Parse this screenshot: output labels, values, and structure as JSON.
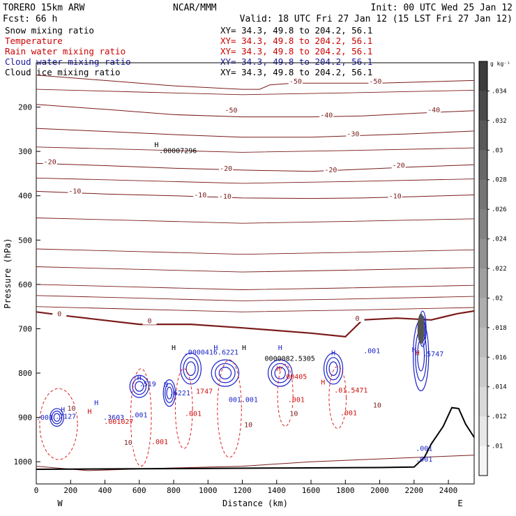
{
  "header": {
    "model": "TORERO  15km ARW",
    "forecast": "Fcst:   66 h",
    "center": "NCAR/MMM",
    "init": "Init: 00 UTC Wed 25 Jan 12",
    "valid": "Valid: 18 UTC Fri 27 Jan 12 (15 LST Fri 27 Jan 12)"
  },
  "fields": [
    {
      "name": "Snow mixing ratio",
      "xy": "XY=  34.3, 49.8 to 204.2, 56.1",
      "color": "#000000"
    },
    {
      "name": "Temperature",
      "xy": "XY=  34.3, 49.8 to 204.2, 56.1",
      "color": "#cc0000"
    },
    {
      "name": "Rain water mixing ratio",
      "xy": "XY=  34.3, 49.8 to 204.2, 56.1",
      "color": "#cc0000"
    },
    {
      "name": "Cloud water mixing ratio",
      "xy": "XY=  34.3, 49.8 to 204.2, 56.1",
      "color": "#1a1aa0"
    },
    {
      "name": "Cloud ice mixing ratio",
      "xy": "XY=  34.3, 49.8 to 204.2, 56.1",
      "color": "#000000"
    }
  ],
  "chart_data": {
    "type": "cross-section contour",
    "xlabel": "Distance (km)",
    "ylabel": "Pressure (hPa)",
    "xlim": [
      0,
      2550
    ],
    "ylim": [
      1050,
      100
    ],
    "xticks": [
      0,
      200,
      400,
      600,
      800,
      1000,
      1200,
      1400,
      1600,
      1800,
      2000,
      2200,
      2400
    ],
    "yticks": [
      200,
      300,
      400,
      500,
      600,
      700,
      800,
      900,
      1000
    ],
    "x_ends": {
      "left": "W",
      "right": "E"
    },
    "colorbar": {
      "unit": "g kg⁻¹",
      "ticks": [
        ".034",
        ".032",
        ".03",
        ".028",
        ".026",
        ".024",
        ".022",
        ".02",
        ".018",
        ".016",
        ".014",
        ".012",
        ".01"
      ]
    },
    "temperature_contours": [
      {
        "level": -50,
        "points": [
          [
            0,
            128
          ],
          [
            400,
            140
          ],
          [
            800,
            152
          ],
          [
            1200,
            160
          ],
          [
            1300,
            160
          ],
          [
            1360,
            150
          ],
          [
            1500,
            146
          ],
          [
            1700,
            146
          ],
          [
            2000,
            146
          ],
          [
            2550,
            140
          ]
        ]
      },
      {
        "level": -40,
        "points": [
          [
            0,
            194
          ],
          [
            400,
            205
          ],
          [
            800,
            217
          ],
          [
            1200,
            222
          ],
          [
            1600,
            222
          ],
          [
            1900,
            220
          ],
          [
            2200,
            214
          ],
          [
            2550,
            208
          ]
        ]
      },
      {
        "level": -30,
        "points": [
          [
            0,
            248
          ],
          [
            400,
            255
          ],
          [
            800,
            262
          ],
          [
            1200,
            268
          ],
          [
            1600,
            268
          ],
          [
            1900,
            264
          ],
          [
            2200,
            260
          ],
          [
            2550,
            254
          ]
        ]
      },
      {
        "level": -20,
        "points": [
          [
            0,
            327
          ],
          [
            400,
            332
          ],
          [
            800,
            338
          ],
          [
            1200,
            342
          ],
          [
            1600,
            345
          ],
          [
            1900,
            340
          ],
          [
            2200,
            335
          ],
          [
            2550,
            330
          ]
        ]
      },
      {
        "level": -10,
        "points": [
          [
            0,
            390
          ],
          [
            400,
            396
          ],
          [
            800,
            400
          ],
          [
            1200,
            405
          ],
          [
            1600,
            406
          ],
          [
            1900,
            405
          ],
          [
            2200,
            402
          ],
          [
            2550,
            398
          ]
        ]
      },
      {
        "level": 0,
        "points": [
          [
            0,
            662
          ],
          [
            200,
            672
          ],
          [
            600,
            690
          ],
          [
            900,
            690
          ],
          [
            1200,
            698
          ],
          [
            1600,
            710
          ],
          [
            1800,
            718
          ],
          [
            1900,
            680
          ],
          [
            2100,
            676
          ],
          [
            2300,
            680
          ],
          [
            2450,
            666
          ],
          [
            2550,
            660
          ]
        ]
      },
      {
        "level": 10,
        "points": [
          [
            0,
            1010
          ],
          [
            300,
            1020
          ],
          [
            700,
            1015
          ],
          [
            1200,
            1010
          ],
          [
            1600,
            1000
          ],
          [
            2100,
            992
          ],
          [
            2550,
            985
          ]
        ]
      }
    ],
    "temperature_labels": [
      {
        "text": "-50",
        "x": 1510,
        "p": 146
      },
      {
        "text": "-50",
        "x": 1975,
        "p": 146
      },
      {
        "text": "-50",
        "x": 1135,
        "p": 211
      },
      {
        "text": "-40",
        "x": 1690,
        "p": 222
      },
      {
        "text": "-40",
        "x": 2315,
        "p": 210
      },
      {
        "text": "-30",
        "x": 1845,
        "p": 264
      },
      {
        "text": "-20",
        "x": 80,
        "p": 327
      },
      {
        "text": "-20",
        "x": 1105,
        "p": 342
      },
      {
        "text": "-20",
        "x": 1715,
        "p": 345
      },
      {
        "text": "-20",
        "x": 2110,
        "p": 335
      },
      {
        "text": "-10",
        "x": 225,
        "p": 393
      },
      {
        "text": "-10",
        "x": 955,
        "p": 402
      },
      {
        "text": "-10",
        "x": 1100,
        "p": 405
      },
      {
        "text": "-10",
        "x": 2090,
        "p": 404
      },
      {
        "text": "0",
        "x": 135,
        "p": 670
      },
      {
        "text": "0",
        "x": 660,
        "p": 686
      },
      {
        "text": "0",
        "x": 1870,
        "p": 680
      },
      {
        "text": "10",
        "x": 205,
        "p": 883
      },
      {
        "text": "10",
        "x": 535,
        "p": 960
      },
      {
        "text": "10",
        "x": 1235,
        "p": 920
      },
      {
        "text": "10",
        "x": 1500,
        "p": 895
      },
      {
        "text": "10",
        "x": 1985,
        "p": 876
      }
    ],
    "surface_pressure": [
      [
        0,
        1017
      ],
      [
        500,
        1016
      ],
      [
        1000,
        1015
      ],
      [
        1500,
        1014
      ],
      [
        2000,
        1013
      ],
      [
        2200,
        1012
      ],
      [
        2260,
        990
      ],
      [
        2300,
        960
      ],
      [
        2370,
        920
      ],
      [
        2420,
        878
      ],
      [
        2460,
        880
      ],
      [
        2500,
        915
      ],
      [
        2550,
        945
      ]
    ],
    "cloud_water_labels": [
      {
        "text": ".519",
        "x": 600,
        "p": 830
      },
      {
        "text": ".6221",
        "x": 775,
        "p": 850
      },
      {
        "text": ".0000416.6221",
        "x": 860,
        "p": 758
      },
      {
        "text": ".5747",
        "x": 2250,
        "p": 762
      },
      {
        "text": ".7127",
        "x": 110,
        "p": 903
      },
      {
        "text": ".3603",
        "x": 390,
        "p": 905
      },
      {
        "text": ".001",
        "x": 550,
        "p": 900
      },
      {
        "text": "001.001",
        "x": 1120,
        "p": 865
      },
      {
        "text": ".001",
        "x": 1905,
        "p": 755
      },
      {
        "text": ".001",
        "x": 2210,
        "p": 975
      },
      {
        "text": ".001",
        "x": 0,
        "p": 905
      },
      {
        "text": ".001",
        "x": 2210,
        "p": 1000
      }
    ],
    "rain_labels": [
      {
        "text": ".001027",
        "x": 395,
        "p": 915
      },
      {
        "text": "1747",
        "x": 930,
        "p": 846
      },
      {
        "text": ".001",
        "x": 865,
        "p": 897
      },
      {
        "text": ".001",
        "x": 670,
        "p": 960
      },
      {
        "text": ".001",
        "x": 1465,
        "p": 865
      },
      {
        "text": ".00405",
        "x": 1430,
        "p": 813
      },
      {
        "text": ".01.5471",
        "x": 1735,
        "p": 844
      },
      {
        "text": ".001",
        "x": 1770,
        "p": 895
      }
    ],
    "snow_labels": [
      {
        "text": "0000082.5305",
        "x": 1330,
        "p": 772
      },
      {
        "text": ".00007296",
        "x": 715,
        "p": 304
      }
    ],
    "highs": [
      {
        "x": 700,
        "p": 290,
        "color": "black"
      },
      {
        "x": 800,
        "p": 748,
        "color": "black"
      },
      {
        "x": 1045,
        "p": 748,
        "color": "blue"
      },
      {
        "x": 1210,
        "p": 748,
        "color": "black"
      },
      {
        "x": 1420,
        "p": 748,
        "color": "blue"
      },
      {
        "x": 1730,
        "p": 760,
        "color": "blue"
      },
      {
        "x": 2200,
        "p": 753,
        "color": "blue"
      },
      {
        "x": 600,
        "p": 816,
        "color": "blue"
      },
      {
        "x": 755,
        "p": 831,
        "color": "blue"
      },
      {
        "x": 155,
        "p": 888,
        "color": "blue"
      },
      {
        "x": 350,
        "p": 872,
        "color": "blue"
      },
      {
        "x": 310,
        "p": 892,
        "color": "red"
      },
      {
        "x": 1410,
        "p": 795,
        "color": "red"
      },
      {
        "x": 1670,
        "p": 826,
        "color": "red"
      },
      {
        "x": 2220,
        "p": 760,
        "color": "red"
      }
    ]
  }
}
